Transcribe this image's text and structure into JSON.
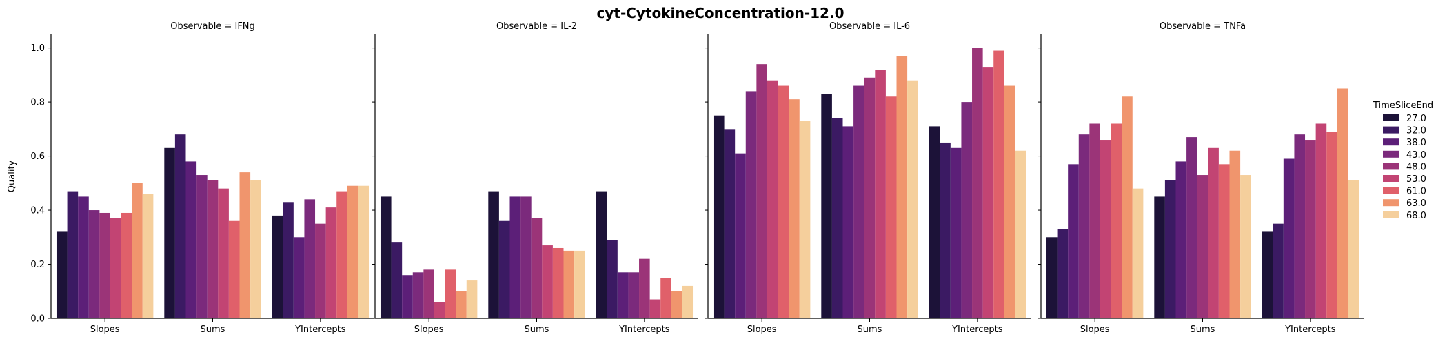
{
  "chart_data": {
    "type": "bar",
    "title": "cyt-CytokineConcentration-12.0",
    "ylabel": "Quality",
    "xlabel": "",
    "ylim": [
      0,
      1.05
    ],
    "yticks": [
      "0.0",
      "0.2",
      "0.4",
      "0.6",
      "0.8",
      "1.0"
    ],
    "categories": [
      "Slopes",
      "Sums",
      "YIntercepts"
    ],
    "legend": {
      "title": "TimeSliceEnd",
      "placement": "right",
      "entries": [
        "27.0",
        "32.0",
        "38.0",
        "43.0",
        "48.0",
        "53.0",
        "61.0",
        "63.0",
        "68.0"
      ]
    },
    "colors": [
      "#1c1238",
      "#3b1a63",
      "#5c1f78",
      "#7b2a7c",
      "#9b3478",
      "#c24473",
      "#e0606a",
      "#f0956d",
      "#f5cf9c"
    ],
    "panels": [
      {
        "title": "Observable = IFNg",
        "values": [
          [
            0.32,
            0.47,
            0.45,
            0.4,
            0.39,
            0.37,
            0.39,
            0.5,
            0.46
          ],
          [
            0.63,
            0.68,
            0.58,
            0.53,
            0.51,
            0.48,
            0.36,
            0.54,
            0.51
          ],
          [
            0.38,
            0.43,
            0.3,
            0.44,
            0.35,
            0.41,
            0.47,
            0.49,
            0.49
          ]
        ]
      },
      {
        "title": "Observable = IL-2",
        "values": [
          [
            0.45,
            0.28,
            0.16,
            0.17,
            0.18,
            0.06,
            0.18,
            0.1,
            0.14
          ],
          [
            0.47,
            0.36,
            0.45,
            0.45,
            0.37,
            0.27,
            0.26,
            0.25,
            0.25
          ],
          [
            0.47,
            0.29,
            0.17,
            0.17,
            0.22,
            0.07,
            0.15,
            0.1,
            0.12
          ]
        ]
      },
      {
        "title": "Observable = IL-6",
        "values": [
          [
            0.75,
            0.7,
            0.61,
            0.84,
            0.94,
            0.88,
            0.86,
            0.81,
            0.73
          ],
          [
            0.83,
            0.74,
            0.71,
            0.86,
            0.89,
            0.92,
            0.82,
            0.97,
            0.88
          ],
          [
            0.71,
            0.65,
            0.63,
            0.8,
            1.0,
            0.93,
            0.99,
            0.86,
            0.62
          ]
        ]
      },
      {
        "title": "Observable = TNFa",
        "values": [
          [
            0.3,
            0.33,
            0.57,
            0.68,
            0.72,
            0.66,
            0.72,
            0.82,
            0.48
          ],
          [
            0.45,
            0.51,
            0.58,
            0.67,
            0.53,
            0.63,
            0.57,
            0.62,
            0.53
          ],
          [
            0.32,
            0.35,
            0.59,
            0.68,
            0.66,
            0.72,
            0.69,
            0.85,
            0.51
          ]
        ]
      }
    ]
  }
}
